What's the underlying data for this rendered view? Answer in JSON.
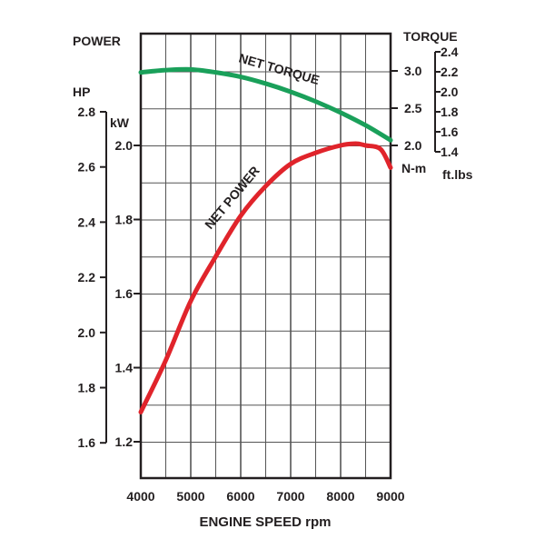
{
  "chart_data": {
    "type": "line",
    "xlabel": "ENGINE SPEED rpm",
    "xlim": [
      4000,
      9000
    ],
    "x_ticks": [
      "4000",
      "5000",
      "6000",
      "7000",
      "8000",
      "9000"
    ],
    "left_title": "POWER",
    "hp_label": "HP",
    "hp_ticks": [
      "2.8",
      "2.6",
      "2.4",
      "2.2",
      "2.0",
      "1.8",
      "1.6"
    ],
    "kw_label": "kW",
    "kw_ticks": [
      "2.0",
      "1.8",
      "1.6",
      "1.4",
      "1.2"
    ],
    "kw_ylim": [
      1.1,
      2.3
    ],
    "right_title": "TORQUE",
    "nm_label": "N-m",
    "nm_ticks": [
      "3.0",
      "2.5",
      "2.0"
    ],
    "ftlbs_label": "ft.lbs",
    "ftlbs_ticks": [
      "2.4",
      "2.2",
      "2.0",
      "1.8",
      "1.6",
      "1.4"
    ],
    "grid": true,
    "series": [
      {
        "name": "NET TORQUE",
        "unit": "N-m",
        "color": "#1aa05a",
        "x": [
          4000,
          4500,
          5000,
          5500,
          6000,
          6500,
          7000,
          7500,
          8000,
          8500,
          9000
        ],
        "values": [
          2.98,
          3.01,
          3.02,
          2.98,
          2.92,
          2.83,
          2.72,
          2.59,
          2.44,
          2.27,
          2.07
        ]
      },
      {
        "name": "NET POWER",
        "unit": "kW",
        "color": "#e0242b",
        "x": [
          4000,
          4500,
          5000,
          5500,
          6000,
          6500,
          7000,
          7500,
          8000,
          8300,
          8500,
          8800,
          9000
        ],
        "values": [
          1.28,
          1.42,
          1.58,
          1.7,
          1.81,
          1.89,
          1.95,
          1.98,
          2.0,
          2.005,
          2.0,
          1.99,
          1.94
        ]
      }
    ]
  }
}
